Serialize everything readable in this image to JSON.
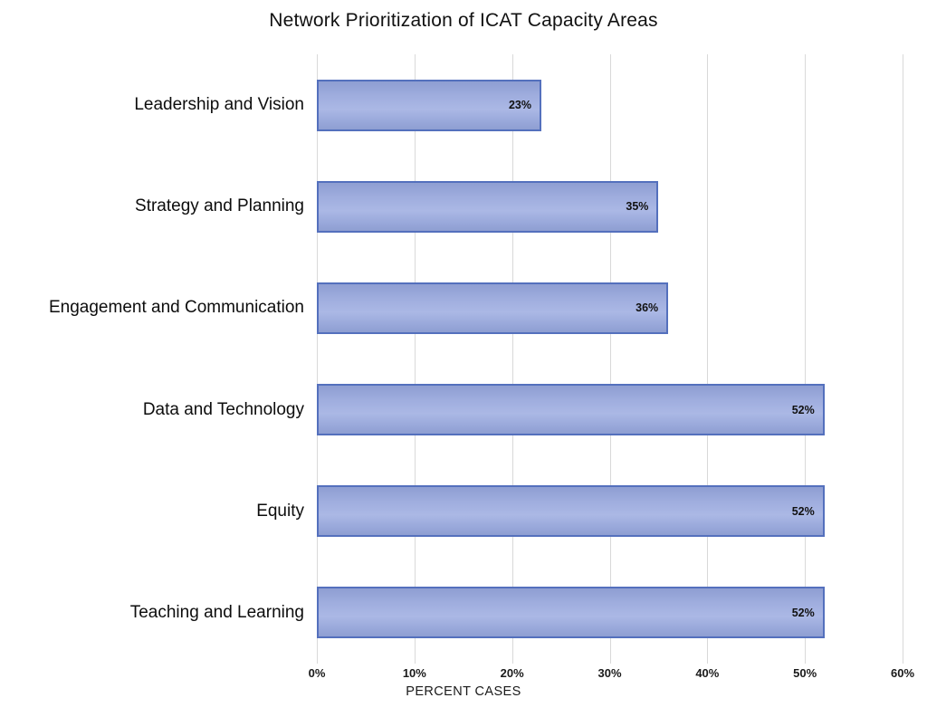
{
  "title": "Network Prioritization of ICAT Capacity Areas",
  "chart_data": {
    "type": "bar",
    "orientation": "horizontal",
    "title": "Network Prioritization of ICAT Capacity Areas",
    "categories": [
      "Leadership and Vision",
      "Strategy and Planning",
      "Engagement and Communication",
      "Data and Technology",
      "Equity",
      "Teaching and Learning"
    ],
    "values": [
      23,
      35,
      36,
      52,
      52,
      52
    ],
    "value_labels": [
      "23%",
      "35%",
      "36%",
      "52%",
      "52%",
      "52%"
    ],
    "xlabel": "PERCENT CASES",
    "ylabel": "",
    "xlim": [
      0,
      60
    ],
    "xticks": [
      0,
      10,
      20,
      30,
      40,
      50,
      60
    ],
    "xtick_labels": [
      "0%",
      "10%",
      "20%",
      "30%",
      "40%",
      "50%",
      "60%"
    ],
    "grid": "vertical-gridlines-on",
    "legend": "none",
    "colors": {
      "bar_fill_light": "#abb8e5",
      "bar_fill_dark": "#8e9ed2",
      "bar_border": "#5470bd",
      "gridline": "#d9d9d9",
      "text": "#111111",
      "background": "#ffffff"
    }
  }
}
